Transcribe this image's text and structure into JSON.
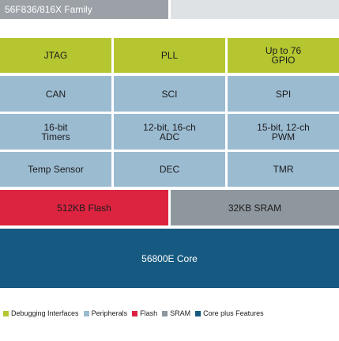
{
  "title": "56F836/816X Family",
  "colors": {
    "debugging": "#b5c631",
    "peripherals": "#9bbbd1",
    "flash": "#dc2440",
    "sram": "#8f979e",
    "core": "#165a81"
  },
  "row1": {
    "jtag": "JTAG",
    "pll": "PLL",
    "gpio": "Up to 76\nGPIO"
  },
  "row2": {
    "can": "CAN",
    "sci": "SCI",
    "spi": "SPI"
  },
  "row3": {
    "timers": "16-bit\nTimers",
    "adc": "12-bit, 16-ch\nADC",
    "pwm": "15-bit, 12-ch\nPWM"
  },
  "row4": {
    "temp_sensor": "Temp Sensor",
    "dec": "DEC",
    "tmr": "TMR"
  },
  "memory": {
    "flash": "512KB Flash",
    "sram": "32KB SRAM"
  },
  "core": {
    "label": "56800E Core"
  },
  "legend": [
    {
      "label": "Debugging Interfaces",
      "color_key": "debugging"
    },
    {
      "label": "Peripherals",
      "color_key": "peripherals"
    },
    {
      "label": "Flash",
      "color_key": "flash"
    },
    {
      "label": "SRAM",
      "color_key": "sram"
    },
    {
      "label": "Core plus Features",
      "color_key": "core"
    }
  ]
}
